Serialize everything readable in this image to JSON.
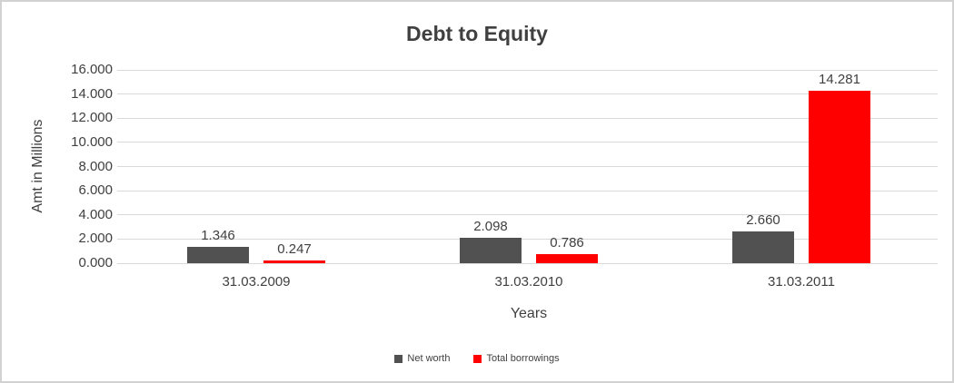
{
  "chart_data": {
    "type": "bar",
    "title": "Debt to Equity",
    "xlabel": "Years",
    "ylabel": "Amt in Millions",
    "categories": [
      "31.03.2009",
      "31.03.2010",
      "31.03.2011"
    ],
    "series": [
      {
        "name": "Net worth",
        "color": "#515151",
        "values": [
          1.346,
          2.098,
          2.66
        ],
        "labels": [
          "1.346",
          "2.098",
          "2.660"
        ]
      },
      {
        "name": "Total borrowings",
        "color": "#ff0000",
        "values": [
          0.247,
          0.786,
          14.281
        ],
        "labels": [
          "0.247",
          "0.786",
          "14.281"
        ]
      }
    ],
    "y_ticks": [
      "0.000",
      "2.000",
      "4.000",
      "6.000",
      "8.000",
      "10.000",
      "12.000",
      "14.000",
      "16.000"
    ],
    "ylim": [
      0,
      16
    ],
    "grid": true,
    "legend_position": "bottom",
    "colors": {
      "gridline": "#d9d9d9",
      "text": "#404040",
      "frame_border": "#d2d2d2"
    }
  }
}
